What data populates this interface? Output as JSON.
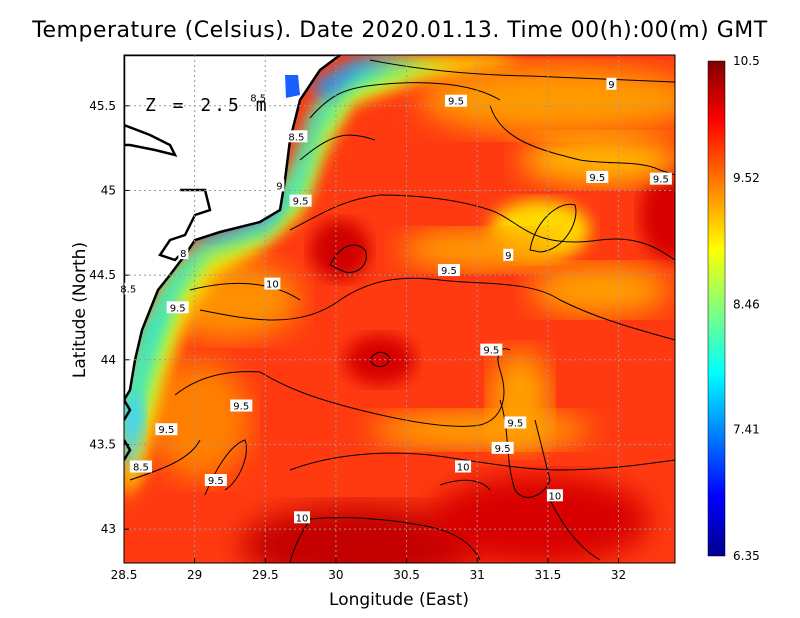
{
  "title": "Temperature (Celsius). Date 2020.01.13. Time 00(h):00(m) GMT",
  "depth_label": "Z = 2.5 m",
  "xlabel": "Longitude (East)",
  "ylabel": "Latitude (North)",
  "colors": {
    "scale": [
      "#00008f",
      "#0000ff",
      "#00ffff",
      "#ffff00",
      "#ff0000",
      "#800000"
    ],
    "land": "#ffffff",
    "coast": "#000000"
  },
  "chart_data": {
    "type": "heatmap",
    "xlim": [
      28.5,
      32.4
    ],
    "ylim": [
      42.8,
      45.8
    ],
    "xticks": [
      "28.5",
      "29",
      "29.5",
      "30",
      "30.5",
      "31",
      "31.5",
      "32"
    ],
    "yticks": [
      "43",
      "43.5",
      "44",
      "44.5",
      "45",
      "45.5"
    ],
    "grid": true,
    "colorbar": {
      "min": 6.35,
      "max": 10.5,
      "labels": [
        "10.5",
        "9.52",
        "8.46",
        "7.41",
        "6.35"
      ]
    },
    "contour_labels": [
      {
        "text": "9",
        "lon": 31.95,
        "lat": 45.63
      },
      {
        "text": "9.5",
        "lon": 31.85,
        "lat": 45.08
      },
      {
        "text": "9.5",
        "lon": 30.85,
        "lat": 45.53
      },
      {
        "text": "9.5",
        "lon": 32.3,
        "lat": 45.07
      },
      {
        "text": "8.5",
        "lon": 29.45,
        "lat": 45.55
      },
      {
        "text": "8.5",
        "lon": 29.72,
        "lat": 45.32
      },
      {
        "text": "9",
        "lon": 29.6,
        "lat": 45.03
      },
      {
        "text": "9.5",
        "lon": 29.75,
        "lat": 44.94
      },
      {
        "text": "8",
        "lon": 28.92,
        "lat": 44.63
      },
      {
        "text": "8.5",
        "lon": 28.53,
        "lat": 44.42
      },
      {
        "text": "9.5",
        "lon": 28.88,
        "lat": 44.31
      },
      {
        "text": "10",
        "lon": 29.55,
        "lat": 44.45
      },
      {
        "text": "9",
        "lon": 31.22,
        "lat": 44.62
      },
      {
        "text": "9.5",
        "lon": 30.8,
        "lat": 44.53
      },
      {
        "text": "9.5",
        "lon": 31.1,
        "lat": 44.06
      },
      {
        "text": "9.5",
        "lon": 29.33,
        "lat": 43.73
      },
      {
        "text": "9.5",
        "lon": 28.8,
        "lat": 43.59
      },
      {
        "text": "9.5",
        "lon": 31.27,
        "lat": 43.63
      },
      {
        "text": "9.5",
        "lon": 31.18,
        "lat": 43.48
      },
      {
        "text": "10",
        "lon": 30.9,
        "lat": 43.37
      },
      {
        "text": "9.5",
        "lon": 29.15,
        "lat": 43.29
      },
      {
        "text": "10",
        "lon": 31.55,
        "lat": 43.2
      },
      {
        "text": "8.5",
        "lon": 28.62,
        "lat": 43.37
      },
      {
        "text": "10",
        "lon": 29.76,
        "lat": 43.07
      }
    ]
  }
}
